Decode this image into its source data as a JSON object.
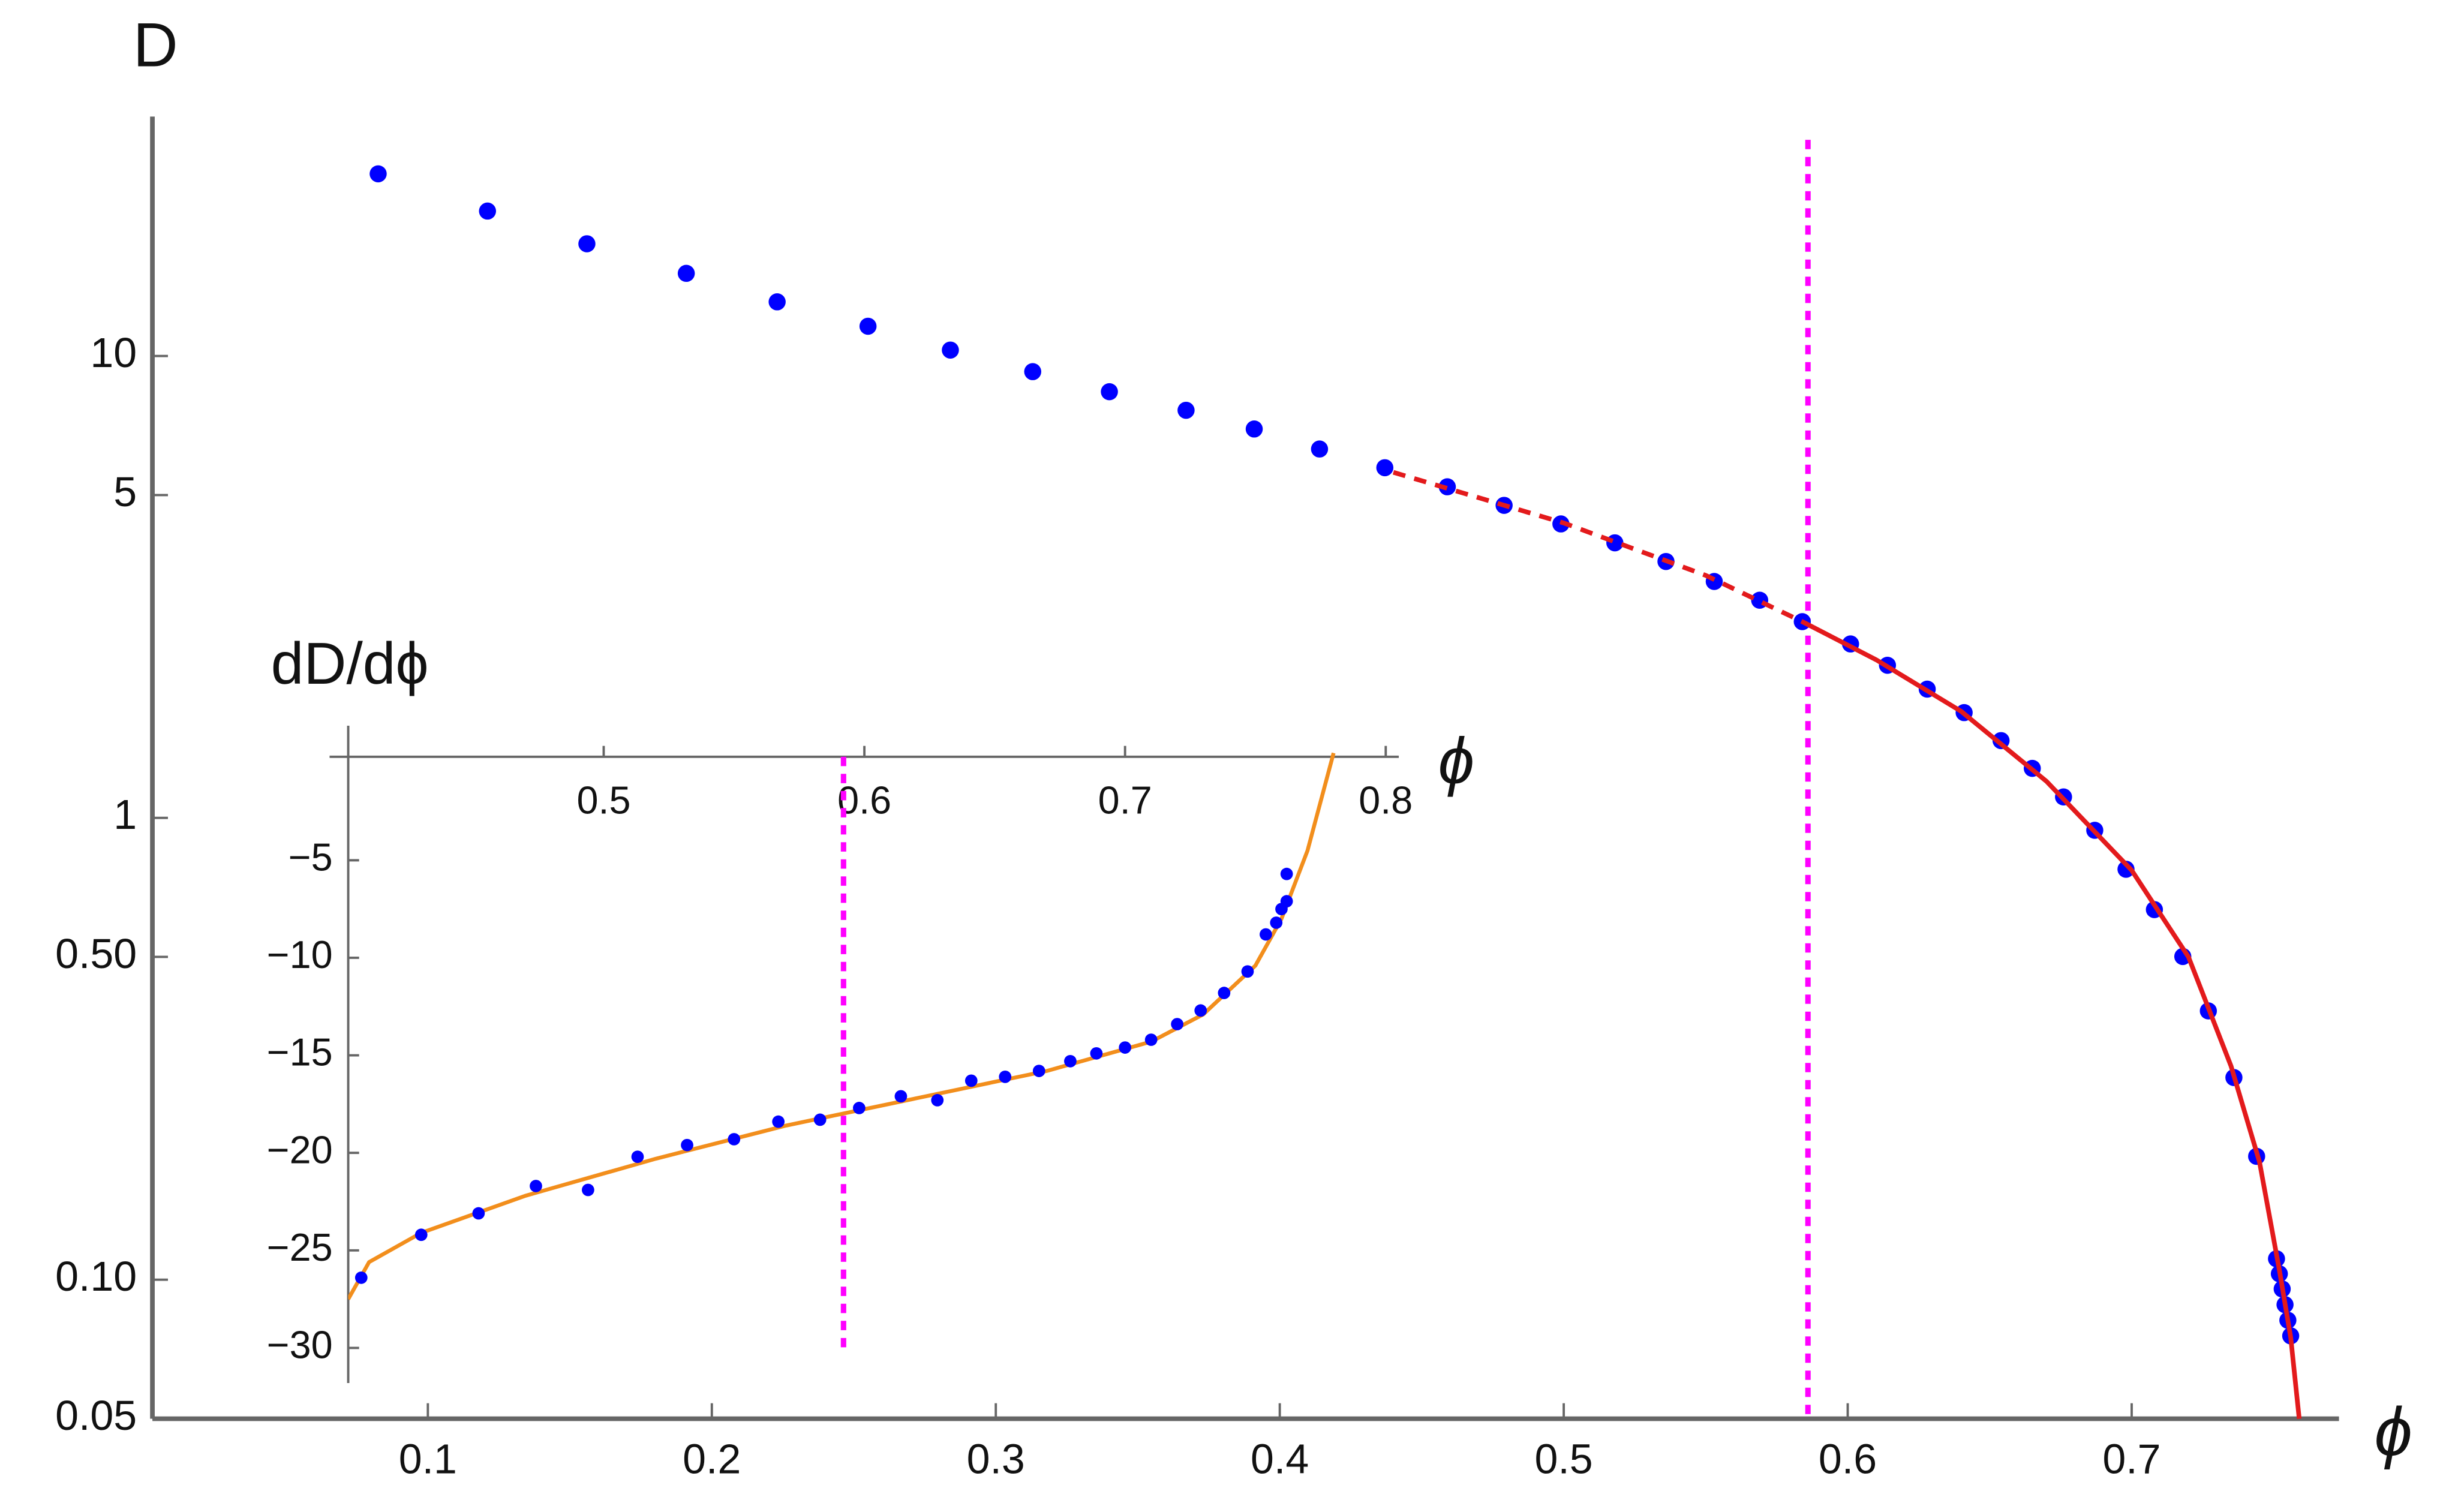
{
  "chart_data": [
    {
      "type": "scatter",
      "y_label": "D",
      "x_label": "ϕ",
      "yscale": "log",
      "xlim": [
        0.003,
        0.773
      ],
      "ylim": [
        0.05,
        33
      ],
      "xticks": [
        0.1,
        0.2,
        0.3,
        0.4,
        0.5,
        0.6,
        0.7
      ],
      "yticks": [
        0.05,
        {
          "value": 0.1,
          "label": "0.10"
        },
        {
          "value": 0.5,
          "label": "0.50"
        },
        1,
        5,
        10
      ],
      "reference_x": 0.586,
      "reference_color": "#ff00ff",
      "series": [
        {
          "kind": "points",
          "color": "#0000ff",
          "x": [
            0.0825,
            0.121,
            0.156,
            0.191,
            0.223,
            0.255,
            0.284,
            0.313,
            0.34,
            0.367,
            0.391,
            0.414,
            0.437,
            0.459,
            0.479,
            0.499,
            0.518,
            0.536,
            0.553,
            0.569,
            0.584,
            0.601,
            0.614,
            0.628,
            0.641,
            0.654,
            0.665,
            0.676,
            0.687,
            0.698,
            0.708,
            0.718,
            0.727,
            0.736,
            0.744,
            0.751,
            0.752,
            0.753,
            0.754,
            0.755,
            0.756
          ],
          "values": [
            24.8,
            20.6,
            17.5,
            15.1,
            13.1,
            11.6,
            10.3,
            9.25,
            8.37,
            7.63,
            6.95,
            6.29,
            5.73,
            5.21,
            4.75,
            4.33,
            3.94,
            3.59,
            3.25,
            2.96,
            2.66,
            2.38,
            2.14,
            1.9,
            1.69,
            1.47,
            1.28,
            1.11,
            0.94,
            0.774,
            0.633,
            0.501,
            0.382,
            0.274,
            0.185,
            0.111,
            0.103,
            0.0955,
            0.0883,
            0.0817,
            0.0756
          ]
        },
        {
          "kind": "line",
          "dash": true,
          "color": "#e31a1c",
          "x": [
            0.44,
            0.5,
            0.55,
            0.584
          ],
          "values": [
            5.6,
            4.35,
            3.35,
            2.66
          ]
        },
        {
          "kind": "line",
          "dash": false,
          "color": "#e31a1c",
          "x": [
            0.584,
            0.61,
            0.64,
            0.67,
            0.7,
            0.72,
            0.735,
            0.745,
            0.752,
            0.756,
            0.759
          ],
          "values": [
            2.66,
            2.2,
            1.7,
            1.2,
            0.77,
            0.5,
            0.29,
            0.18,
            0.105,
            0.075,
            0.05
          ]
        }
      ]
    },
    {
      "type": "scatter",
      "y_label": "dD/dϕ",
      "x_label": "ϕ",
      "yscale": "linear",
      "xlim": [
        0.402,
        0.805
      ],
      "ylim": [
        -31.8,
        1.9
      ],
      "xticks": [
        0.5,
        0.6,
        0.7,
        0.8
      ],
      "yticks": [
        {
          "value": -5,
          "label": "−5"
        },
        {
          "value": -10,
          "label": "−10"
        },
        {
          "value": -15,
          "label": "−15"
        },
        {
          "value": -20,
          "label": "−20"
        },
        {
          "value": -25,
          "label": "−25"
        },
        {
          "value": -30,
          "label": "−30"
        }
      ],
      "reference_x": 0.592,
      "reference_color": "#ff00ff",
      "series": [
        {
          "kind": "line",
          "dash": false,
          "color": "#f28e1c",
          "x": [
            0.402,
            0.41,
            0.43,
            0.47,
            0.52,
            0.57,
            0.62,
            0.67,
            0.71,
            0.73,
            0.75,
            0.76,
            0.77,
            0.78
          ],
          "values": [
            -27.5,
            -25.6,
            -24.1,
            -22.2,
            -20.3,
            -18.6,
            -17.2,
            -15.8,
            -14.3,
            -12.9,
            -10.4,
            -8.0,
            -4.5,
            0.5
          ]
        },
        {
          "kind": "points",
          "color": "#0000ff",
          "x": [
            0.407,
            0.43,
            0.452,
            0.474,
            0.494,
            0.513,
            0.532,
            0.55,
            0.567,
            0.583,
            0.598,
            0.614,
            0.628,
            0.641,
            0.654,
            0.667,
            0.679,
            0.689,
            0.7,
            0.71,
            0.72,
            0.729,
            0.738,
            0.747,
            0.754,
            0.758,
            0.76,
            0.762,
            0.762
          ],
          "values": [
            -26.4,
            -24.2,
            -23.1,
            -21.7,
            -21.9,
            -20.2,
            -19.6,
            -19.3,
            -18.4,
            -18.3,
            -17.7,
            -17.1,
            -17.3,
            -16.3,
            -16.1,
            -15.8,
            -15.3,
            -14.9,
            -14.6,
            -14.2,
            -13.4,
            -12.7,
            -11.8,
            -10.7,
            -8.8,
            -8.2,
            -7.5,
            -7.1,
            -5.7
          ]
        }
      ]
    }
  ]
}
